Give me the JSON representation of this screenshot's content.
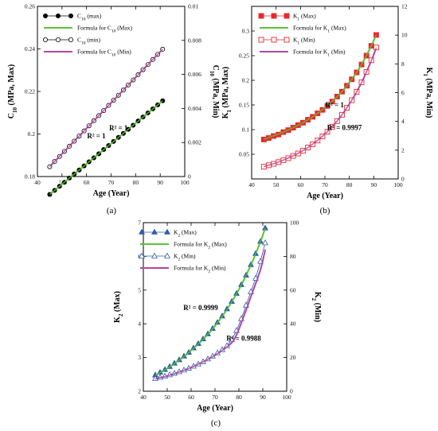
{
  "chart_data": [
    {
      "type": "scatter",
      "xlabel": "Age (Year)",
      "ylabel": "C10 (MPa, Max)",
      "y2label": "C10 (MPa, Min)",
      "caption": "(a)",
      "xlim": [
        40,
        100
      ],
      "xticks": [
        40,
        50,
        60,
        70,
        80,
        90,
        100
      ],
      "ylim": [
        0.18,
        0.26
      ],
      "yticks": [
        0.18,
        0.2,
        0.22,
        0.24,
        0.26
      ],
      "y2lim": [
        0,
        0.01
      ],
      "y2ticks": [
        0,
        0.002,
        0.004,
        0.006,
        0.008,
        0.01
      ],
      "series": [
        {
          "name": "C10 (max)",
          "axis": "left",
          "style": "filled-circle",
          "color": "#000000",
          "fill": "#000000",
          "x": [
            45,
            47,
            49,
            51,
            53,
            55,
            57,
            59,
            61,
            63,
            65,
            67,
            69,
            71,
            73,
            75,
            77,
            79,
            81,
            83,
            85,
            87,
            89,
            91
          ],
          "y": [
            0.1716,
            0.1735,
            0.1754,
            0.1773,
            0.1793,
            0.1812,
            0.1831,
            0.185,
            0.1869,
            0.1888,
            0.1907,
            0.1927,
            0.1946,
            0.1965,
            0.1984,
            0.2003,
            0.2022,
            0.2041,
            0.2061,
            0.208,
            0.2099,
            0.2118,
            0.2137,
            0.2156
          ]
        },
        {
          "name": "Formula for C10 (Max)",
          "axis": "left",
          "style": "line",
          "color": "#5cc436",
          "x": [
            45,
            91
          ],
          "y": [
            0.1716,
            0.2156
          ]
        },
        {
          "name": "C10 (min)",
          "axis": "right",
          "style": "open-circle",
          "color": "#000000",
          "fill": "#ffffff",
          "x": [
            45,
            47,
            49,
            51,
            53,
            55,
            57,
            59,
            61,
            63,
            65,
            67,
            69,
            71,
            73,
            75,
            77,
            79,
            81,
            83,
            85,
            87,
            89,
            91
          ],
          "y": [
            0.00058,
            0.00088,
            0.00118,
            0.00148,
            0.00178,
            0.00208,
            0.00238,
            0.00268,
            0.00298,
            0.00328,
            0.00358,
            0.00388,
            0.00418,
            0.00448,
            0.00478,
            0.00508,
            0.00538,
            0.00568,
            0.00598,
            0.00628,
            0.00658,
            0.00688,
            0.00718,
            0.00748
          ]
        },
        {
          "name": "Formula for C10 (Min)",
          "axis": "right",
          "style": "line",
          "color": "#b5479f",
          "x": [
            45,
            91
          ],
          "y": [
            0.00058,
            0.00748
          ]
        }
      ],
      "annotations": [
        {
          "text": "R² = 1",
          "x": 64,
          "y": 0.198
        },
        {
          "text": "R² = 1",
          "x": 73,
          "y": 0.0027,
          "axis": "right"
        }
      ]
    },
    {
      "type": "scatter",
      "xlabel": "Age (Year)",
      "ylabel": "K1 (MPa, Max)",
      "y2label": "K1 (MPa, Min)",
      "caption": "(b)",
      "xlim": [
        40,
        100
      ],
      "xticks": [
        40,
        50,
        60,
        70,
        80,
        90,
        100
      ],
      "ylim": [
        0,
        0.35
      ],
      "yticks": [
        0.05,
        0.1,
        0.15,
        0.2,
        0.25,
        0.3
      ],
      "y2lim": [
        0,
        12
      ],
      "y2ticks": [
        0,
        2,
        4,
        6,
        8,
        10,
        12
      ],
      "series": [
        {
          "name": "K1 (Max)",
          "axis": "left",
          "style": "filled-square",
          "color": "#e8292b",
          "fill": "#e8292b",
          "x": [
            45,
            47,
            49,
            51,
            53,
            55,
            57,
            59,
            61,
            63,
            65,
            67,
            69,
            71,
            73,
            75,
            77,
            79,
            81,
            83,
            85,
            87,
            89,
            91
          ],
          "y": [
            0.08,
            0.083,
            0.087,
            0.09,
            0.095,
            0.099,
            0.104,
            0.109,
            0.114,
            0.12,
            0.126,
            0.133,
            0.14,
            0.148,
            0.157,
            0.167,
            0.177,
            0.189,
            0.202,
            0.216,
            0.232,
            0.25,
            0.27,
            0.292
          ]
        },
        {
          "name": "Formula for K1 (Max)",
          "axis": "left",
          "style": "smooth",
          "color": "#5cc436",
          "x": [
            45,
            49,
            53,
            57,
            61,
            65,
            69,
            73,
            77,
            81,
            85,
            89,
            91
          ],
          "y": [
            0.0805,
            0.0875,
            0.095,
            0.1042,
            0.1142,
            0.126,
            0.1403,
            0.1572,
            0.1772,
            0.202,
            0.232,
            0.27,
            0.292
          ]
        },
        {
          "name": "K1 (Min)",
          "axis": "right",
          "style": "open-square",
          "color": "#e8292b",
          "fill": "#ffffff",
          "x": [
            45,
            47,
            49,
            51,
            53,
            55,
            57,
            59,
            61,
            63,
            65,
            67,
            69,
            71,
            73,
            75,
            77,
            79,
            81,
            83,
            85,
            87,
            89,
            91
          ],
          "y": [
            0.85,
            0.95,
            1.05,
            1.17,
            1.3,
            1.44,
            1.6,
            1.77,
            1.96,
            2.18,
            2.41,
            2.67,
            2.96,
            3.28,
            3.63,
            4.02,
            4.46,
            4.94,
            5.47,
            6.06,
            6.72,
            7.44,
            8.25,
            9.14
          ]
        },
        {
          "name": "Formula for K1 (Min)",
          "axis": "right",
          "style": "smooth",
          "color": "#b5479f",
          "x": [
            45,
            49,
            53,
            57,
            61,
            65,
            69,
            73,
            77,
            81,
            85,
            89,
            91
          ],
          "y": [
            0.86,
            1.06,
            1.31,
            1.61,
            1.97,
            2.42,
            2.97,
            3.64,
            4.46,
            5.47,
            6.7,
            8.22,
            9.12
          ]
        }
      ],
      "annotations": [
        {
          "text": "R² = 1",
          "x": 74,
          "y": 0.145
        },
        {
          "text": "R² = 0.9997",
          "x": 78,
          "y": 3.4,
          "axis": "right"
        }
      ]
    },
    {
      "type": "scatter",
      "xlabel": "Age (Year)",
      "ylabel": "K2 (Max)",
      "y2label": "K2 (Min)",
      "caption": "(c)",
      "xlim": [
        40,
        100
      ],
      "xticks": [
        40,
        50,
        60,
        70,
        80,
        90,
        100
      ],
      "ylim": [
        2,
        7
      ],
      "yticks": [
        2,
        3,
        4,
        5,
        6,
        7
      ],
      "y2lim": [
        0,
        100
      ],
      "y2ticks": [
        0,
        20,
        40,
        60,
        80,
        100
      ],
      "series": [
        {
          "name": "K2 (Max)",
          "axis": "left",
          "style": "filled-triangle",
          "color": "#2f5ca8",
          "fill": "#2f5ca8",
          "x": [
            45,
            47,
            49,
            51,
            53,
            55,
            57,
            59,
            61,
            63,
            65,
            67,
            69,
            71,
            73,
            75,
            77,
            79,
            81,
            83,
            85,
            87,
            89,
            91
          ],
          "y": [
            2.48,
            2.56,
            2.64,
            2.73,
            2.83,
            2.93,
            3.04,
            3.15,
            3.28,
            3.41,
            3.55,
            3.7,
            3.86,
            4.04,
            4.23,
            4.44,
            4.66,
            4.9,
            5.16,
            5.44,
            5.75,
            6.08,
            6.44,
            6.84
          ]
        },
        {
          "name": "Formula for K2 (Max)",
          "axis": "left",
          "style": "smooth",
          "color": "#5cc436",
          "x": [
            45,
            49,
            53,
            57,
            61,
            65,
            69,
            73,
            77,
            81,
            85,
            89,
            91
          ],
          "y": [
            2.47,
            2.63,
            2.82,
            3.03,
            3.27,
            3.54,
            3.85,
            4.22,
            4.65,
            5.15,
            5.74,
            6.43,
            6.84
          ]
        },
        {
          "name": "K2 (Min)",
          "axis": "right",
          "style": "open-triangle",
          "color": "#2f5ca8",
          "fill": "#ffffff",
          "x": [
            45,
            47,
            49,
            51,
            53,
            55,
            57,
            59,
            61,
            63,
            65,
            67,
            69,
            71,
            73,
            75,
            77,
            79,
            81,
            83,
            85,
            87,
            89,
            91
          ],
          "y": [
            7.5,
            8.2,
            8.9,
            9.7,
            10.6,
            11.5,
            12.5,
            13.6,
            14.8,
            16.1,
            17.5,
            19.1,
            20.8,
            22.7,
            24.6,
            27.0,
            30.5,
            36.0,
            43.0,
            51.0,
            59.0,
            67.0,
            77.0,
            88.0
          ]
        },
        {
          "name": "Formula for K2 (Min)",
          "axis": "right",
          "style": "smooth",
          "color": "#b5479f",
          "x": [
            45,
            49,
            53,
            57,
            61,
            65,
            69,
            73,
            77,
            79,
            81,
            85,
            89,
            91
          ],
          "y": [
            7.3,
            8.7,
            10.4,
            12.4,
            14.7,
            17.4,
            20.5,
            24.2,
            28.8,
            33.5,
            40.5,
            56.0,
            72.0,
            84.0
          ]
        }
      ],
      "annotations": [
        {
          "text": "R² = 0.9999",
          "x": 64,
          "y": 4.4
        },
        {
          "text": "R² = 0.9988",
          "x": 82,
          "y": 30,
          "axis": "right"
        }
      ]
    }
  ],
  "legends": [
    [
      {
        "label": "C",
        "sub": "10",
        "suffix": " (max)"
      },
      {
        "label": "Formula for C",
        "sub": "10",
        "suffix": " (Max)"
      },
      {
        "label": "C",
        "sub": "10",
        "suffix": " (min)"
      },
      {
        "label": "Formula for C",
        "sub": "10",
        "suffix": " (Min)"
      }
    ],
    [
      {
        "label": "K",
        "sub": "1",
        "suffix": " (Max)"
      },
      {
        "label": "Formula for K",
        "sub": "1",
        "suffix": " (Max)"
      },
      {
        "label": "K",
        "sub": "1",
        "suffix": " (Min)"
      },
      {
        "label": "Formula for K",
        "sub": "1",
        "suffix": " (Min)"
      }
    ],
    [
      {
        "label": "K",
        "sub": "2",
        "suffix": " (Max)"
      },
      {
        "label": "Formula for K",
        "sub": "2",
        "suffix": " (Max)"
      },
      {
        "label": "K",
        "sub": "2",
        "suffix": " (Min)"
      },
      {
        "label": "Formula for K",
        "sub": "2",
        "suffix": " (Min)"
      }
    ]
  ],
  "axis_titles": [
    {
      "left_main": "C",
      "left_sub": "10",
      "left_rest": " (MPa, Max)",
      "right_main": "C",
      "right_sub": "10",
      "right_rest": " (MPa, Min)"
    },
    {
      "left_main": "K",
      "left_sub": "1",
      "left_rest": " (MPa, Max)",
      "right_main": "K",
      "right_sub": "1",
      "right_rest": " (MPa, Min)"
    },
    {
      "left_main": "K",
      "left_sub": "2",
      "left_rest": " (Max)",
      "right_main": "K",
      "right_sub": "2",
      "right_rest": " (Min)"
    }
  ]
}
